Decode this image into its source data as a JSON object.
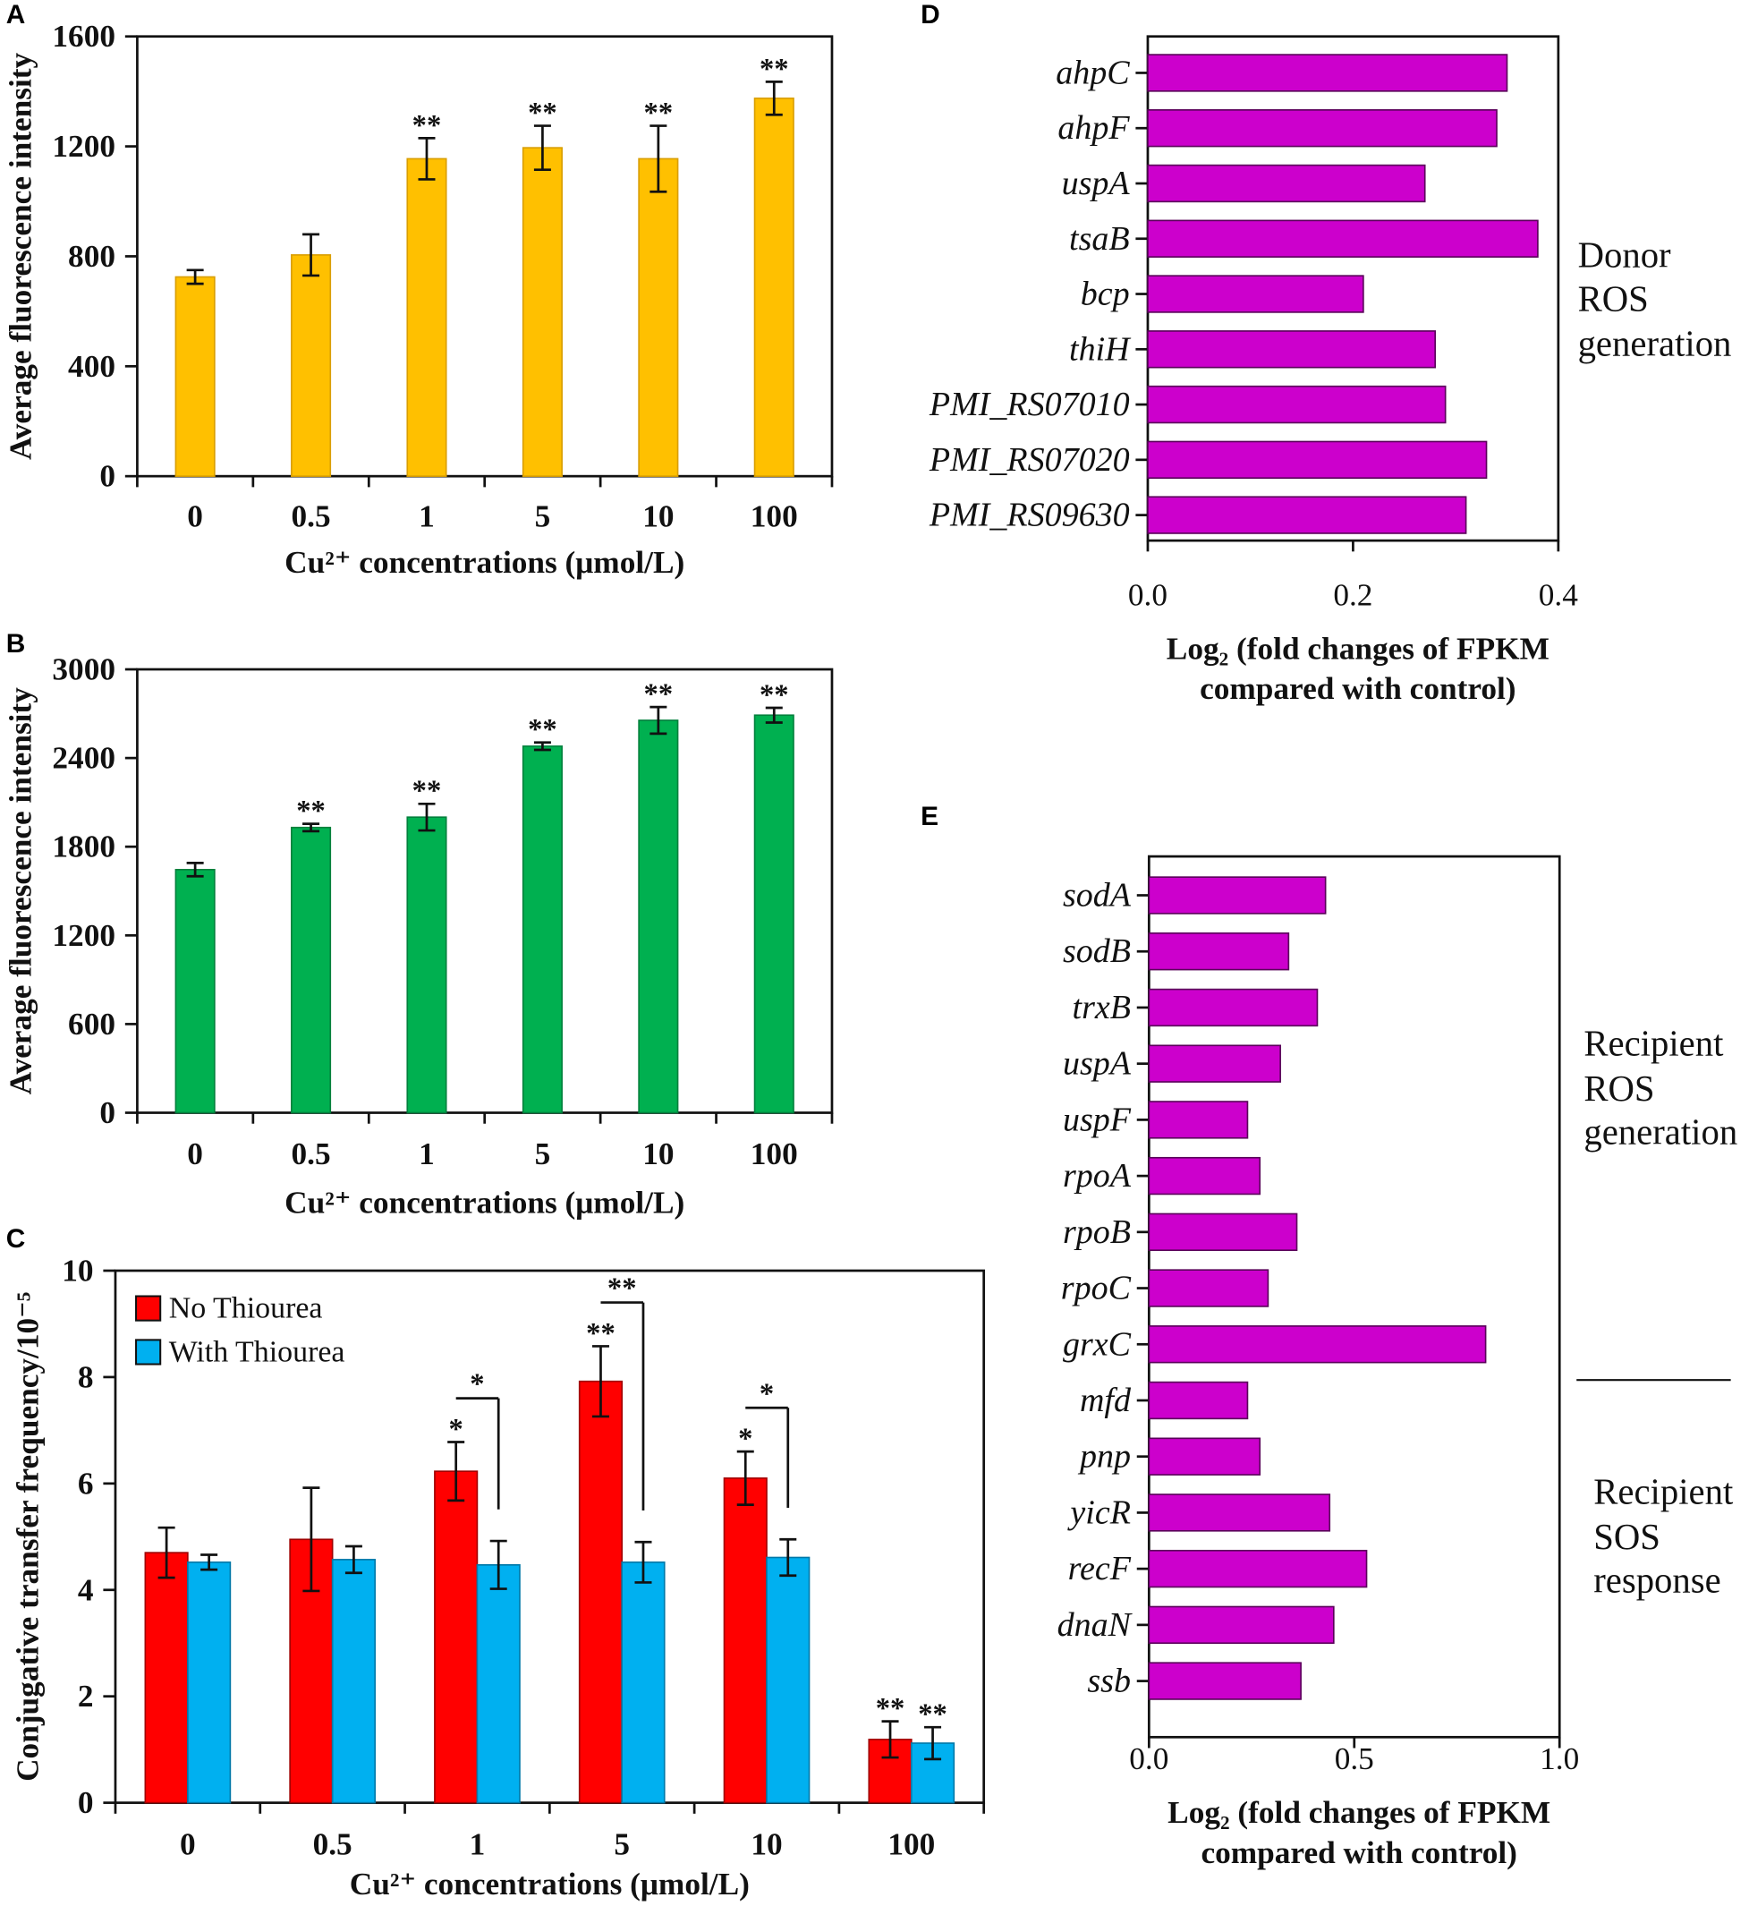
{
  "chart_data": [
    {
      "panel": "A",
      "type": "bar",
      "categories": [
        "0",
        "0.5",
        "1",
        "5",
        "10",
        "100"
      ],
      "values": [
        725,
        805,
        1155,
        1195,
        1155,
        1375
      ],
      "errors": [
        25,
        75,
        75,
        80,
        120,
        60
      ],
      "significance": [
        "",
        "",
        "**",
        "**",
        "**",
        "**"
      ],
      "xlabel": "Cu²⁺ concentrations (μmol/L)",
      "ylabel": "Average fluorescence intensity",
      "ylim": [
        0,
        1600
      ],
      "yticks": [
        0,
        400,
        800,
        1200,
        1600
      ],
      "ytick_labels": [
        "0",
        "400",
        "800",
        "1200",
        "1600"
      ],
      "color": "#FFC000",
      "edge_color": "#D99E00",
      "grid": false
    },
    {
      "panel": "B",
      "type": "bar",
      "categories": [
        "0",
        "0.5",
        "1",
        "5",
        "10",
        "100"
      ],
      "values": [
        1645,
        1930,
        2000,
        2480,
        2655,
        2690
      ],
      "errors": [
        45,
        25,
        90,
        25,
        90,
        50
      ],
      "significance": [
        "",
        "**",
        "**",
        "**",
        "**",
        "**"
      ],
      "xlabel": "Cu²⁺ concentrations (μmol/L)",
      "ylabel": "Average fluorescence intensity",
      "ylim": [
        0,
        3000
      ],
      "yticks": [
        0,
        600,
        1200,
        1800,
        2400,
        3000
      ],
      "ytick_labels": [
        "0",
        "600",
        "1200",
        "1800",
        "2400",
        "3000"
      ],
      "color": "#00B050",
      "edge_color": "#00803C",
      "grid": false
    },
    {
      "panel": "C",
      "type": "bar",
      "categories": [
        "0",
        "0.5",
        "1",
        "5",
        "10",
        "100"
      ],
      "series": [
        {
          "name": "No Thiourea",
          "color": "#FF0000",
          "edge_color": "#A00000",
          "values": [
            4.7,
            4.95,
            6.23,
            7.92,
            6.1,
            1.19
          ],
          "errors": [
            0.47,
            0.97,
            0.55,
            0.66,
            0.5,
            0.34
          ],
          "significance": [
            "",
            "",
            "*",
            "**",
            "*",
            "**"
          ]
        },
        {
          "name": "With Thiourea",
          "color": "#00B0F0",
          "edge_color": "#0078A8",
          "values": [
            4.52,
            4.57,
            4.47,
            4.52,
            4.61,
            1.12
          ],
          "errors": [
            0.14,
            0.25,
            0.45,
            0.38,
            0.34,
            0.3
          ],
          "significance": [
            "",
            "",
            "",
            "",
            "",
            "**"
          ]
        }
      ],
      "comparisons": [
        {
          "category_index": 2,
          "label": "*"
        },
        {
          "category_index": 3,
          "label": "**"
        },
        {
          "category_index": 4,
          "label": "*"
        }
      ],
      "xlabel": "Cu²⁺ concentrations (μmol/L)",
      "ylabel": "Conjugative transfer frequency/10⁻⁵",
      "ylim": [
        0,
        10
      ],
      "yticks": [
        0,
        2,
        4,
        6,
        8,
        10
      ],
      "ytick_labels": [
        "0",
        "2",
        "4",
        "6",
        "8",
        "10"
      ],
      "legend": "top-left",
      "grid": false
    },
    {
      "panel": "D",
      "type": "bar",
      "orientation": "horizontal",
      "genes": [
        "ahpC",
        "ahpF",
        "uspA",
        "tsaB",
        "bcp",
        "thiH",
        "PMI_RS07010",
        "PMI_RS07020",
        "PMI_RS09630"
      ],
      "values": [
        0.35,
        0.34,
        0.27,
        0.38,
        0.21,
        0.28,
        0.29,
        0.33,
        0.31
      ],
      "xlim": [
        0,
        0.4
      ],
      "xticks": [
        0,
        0.2,
        0.4
      ],
      "xtick_labels": [
        "0.0",
        "0.2",
        "0.4"
      ],
      "xlabel": [
        "Log₂ (fold changes of FPKM",
        "compared with control)"
      ],
      "color": "#CC00CC",
      "edge_color": "#5A005A",
      "groups": [
        {
          "lines": [
            "Donor",
            "ROS",
            "generation"
          ],
          "rows": [
            0,
            8
          ]
        }
      ]
    },
    {
      "panel": "E",
      "type": "bar",
      "orientation": "horizontal",
      "genes": [
        "sodA",
        "sodB",
        "trxB",
        "uspA",
        "uspF",
        "rpoA",
        "rpoB",
        "rpoC",
        "grxC",
        "mfd",
        "pnp",
        "yicR",
        "recF",
        "dnaN",
        "ssb"
      ],
      "values": [
        0.43,
        0.34,
        0.41,
        0.32,
        0.24,
        0.27,
        0.36,
        0.29,
        0.82,
        0.24,
        0.27,
        0.44,
        0.53,
        0.45,
        0.37
      ],
      "xlim": [
        0,
        1
      ],
      "xticks": [
        0,
        0.5,
        1
      ],
      "xtick_labels": [
        "0.0",
        "0.5",
        "1.0"
      ],
      "xlabel": [
        "Log₂ (fold changes of FPKM",
        "compared with control)"
      ],
      "color": "#CC00CC",
      "edge_color": "#5A005A",
      "groups": [
        {
          "lines": [
            "Recipient",
            "ROS",
            "generation"
          ],
          "rows": [
            0,
            8
          ]
        },
        {
          "lines": [
            "Recipient",
            "SOS",
            "response"
          ],
          "rows": [
            9,
            14
          ]
        }
      ]
    }
  ]
}
